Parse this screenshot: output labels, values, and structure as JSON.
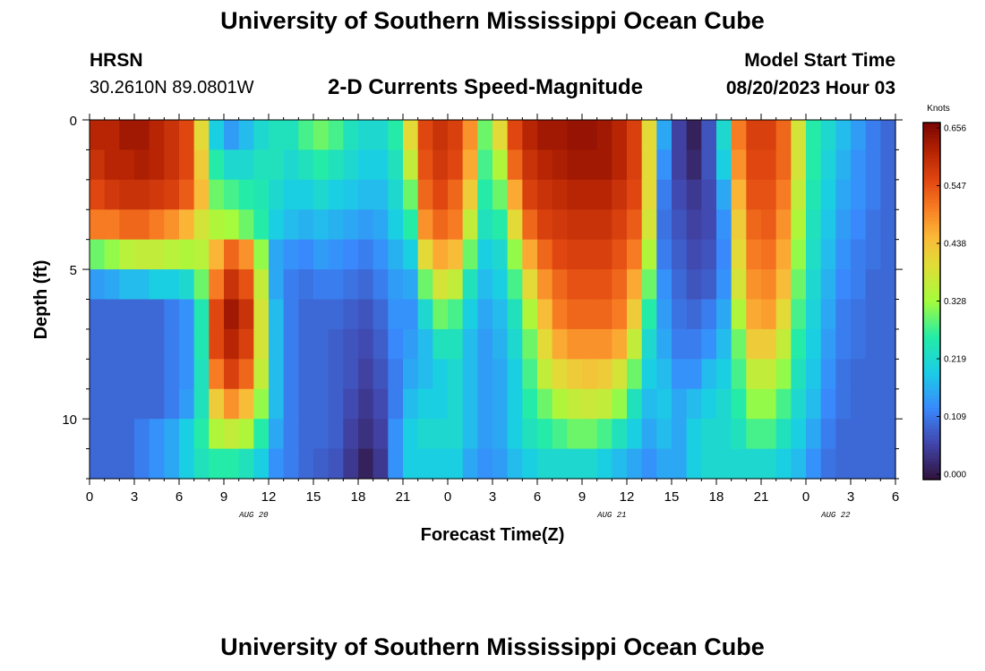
{
  "header": {
    "title": "University of Southern Mississippi Ocean Cube",
    "station": "HRSN",
    "coords": "30.2610N  89.0801W",
    "subtitle": "2-D Currents Speed-Magnitude",
    "model_label": "Model Start Time",
    "model_time": "08/20/2023 Hour 03"
  },
  "footer": {
    "title": "University of Southern Mississippi Ocean Cube"
  },
  "colors": {
    "frame": "#000000",
    "background": "#ffffff"
  },
  "chart_data": {
    "type": "heatmap",
    "title": "2-D Currents Speed-Magnitude",
    "xlabel": "Forecast Time(Z)",
    "ylabel": "Depth (ft)",
    "x_hours_from_start": [
      0,
      54
    ],
    "x_tick_labels": [
      "0",
      "3",
      "6",
      "9",
      "12",
      "15",
      "18",
      "21",
      "0",
      "3",
      "6",
      "9",
      "12",
      "15",
      "18",
      "21",
      "0",
      "3",
      "6"
    ],
    "date_labels": [
      {
        "hour": 11,
        "text": "AUG 20"
      },
      {
        "hour": 35,
        "text": "AUG 21"
      },
      {
        "hour": 50,
        "text": "AUG 22"
      }
    ],
    "y_range_ft": [
      0,
      12
    ],
    "y_major_ticks": [
      0,
      5,
      10
    ],
    "depth_levels_ft": [
      0.5,
      1.5,
      2.5,
      3.5,
      4.5,
      5.5,
      6.5,
      7.5,
      8.5,
      9.5,
      10.5,
      11.5
    ],
    "colorbar": {
      "unit": "Knots",
      "min": 0.0,
      "max": 0.656,
      "ticks": [
        "0.656",
        "0.547",
        "0.438",
        "0.328",
        "0.219",
        "0.109",
        "0.000"
      ]
    },
    "columns_hourly": [
      {
        "h": 0,
        "v": [
          0.6,
          0.58,
          0.55,
          0.5,
          0.3,
          0.15,
          0.1,
          0.1,
          0.1,
          0.1,
          0.1,
          0.1
        ]
      },
      {
        "h": 1,
        "v": [
          0.6,
          0.6,
          0.57,
          0.5,
          0.32,
          0.16,
          0.1,
          0.1,
          0.1,
          0.1,
          0.1,
          0.1
        ]
      },
      {
        "h": 2,
        "v": [
          0.62,
          0.6,
          0.58,
          0.52,
          0.35,
          0.18,
          0.1,
          0.1,
          0.1,
          0.1,
          0.1,
          0.1
        ]
      },
      {
        "h": 3,
        "v": [
          0.62,
          0.61,
          0.58,
          0.52,
          0.36,
          0.18,
          0.1,
          0.1,
          0.1,
          0.1,
          0.12,
          0.12
        ]
      },
      {
        "h": 4,
        "v": [
          0.6,
          0.6,
          0.57,
          0.5,
          0.36,
          0.2,
          0.1,
          0.1,
          0.1,
          0.1,
          0.14,
          0.14
        ]
      },
      {
        "h": 5,
        "v": [
          0.58,
          0.58,
          0.56,
          0.48,
          0.35,
          0.2,
          0.12,
          0.12,
          0.12,
          0.12,
          0.16,
          0.16
        ]
      },
      {
        "h": 6,
        "v": [
          0.55,
          0.55,
          0.53,
          0.45,
          0.34,
          0.22,
          0.14,
          0.14,
          0.14,
          0.15,
          0.2,
          0.2
        ]
      },
      {
        "h": 7,
        "v": [
          0.4,
          0.42,
          0.44,
          0.38,
          0.35,
          0.3,
          0.25,
          0.25,
          0.24,
          0.24,
          0.26,
          0.24
        ]
      },
      {
        "h": 8,
        "v": [
          0.2,
          0.26,
          0.3,
          0.34,
          0.45,
          0.5,
          0.55,
          0.55,
          0.5,
          0.42,
          0.34,
          0.26
        ]
      },
      {
        "h": 9,
        "v": [
          0.15,
          0.22,
          0.28,
          0.33,
          0.52,
          0.58,
          0.62,
          0.6,
          0.56,
          0.48,
          0.36,
          0.26
        ]
      },
      {
        "h": 10,
        "v": [
          0.18,
          0.22,
          0.26,
          0.3,
          0.48,
          0.54,
          0.58,
          0.56,
          0.52,
          0.44,
          0.34,
          0.24
        ]
      },
      {
        "h": 11,
        "v": [
          0.22,
          0.24,
          0.25,
          0.26,
          0.32,
          0.36,
          0.38,
          0.38,
          0.36,
          0.32,
          0.26,
          0.2
        ]
      },
      {
        "h": 12,
        "v": [
          0.24,
          0.24,
          0.22,
          0.2,
          0.16,
          0.16,
          0.18,
          0.18,
          0.18,
          0.18,
          0.16,
          0.14
        ]
      },
      {
        "h": 13,
        "v": [
          0.24,
          0.22,
          0.2,
          0.18,
          0.14,
          0.12,
          0.12,
          0.12,
          0.12,
          0.12,
          0.12,
          0.12
        ]
      },
      {
        "h": 14,
        "v": [
          0.28,
          0.24,
          0.2,
          0.17,
          0.13,
          0.11,
          0.1,
          0.1,
          0.1,
          0.1,
          0.1,
          0.1
        ]
      },
      {
        "h": 15,
        "v": [
          0.3,
          0.26,
          0.22,
          0.18,
          0.15,
          0.12,
          0.1,
          0.1,
          0.1,
          0.1,
          0.1,
          0.09
        ]
      },
      {
        "h": 16,
        "v": [
          0.28,
          0.24,
          0.2,
          0.17,
          0.14,
          0.12,
          0.1,
          0.09,
          0.09,
          0.09,
          0.09,
          0.08
        ]
      },
      {
        "h": 17,
        "v": [
          0.24,
          0.22,
          0.19,
          0.16,
          0.13,
          0.11,
          0.09,
          0.08,
          0.08,
          0.07,
          0.06,
          0.05
        ]
      },
      {
        "h": 18,
        "v": [
          0.22,
          0.2,
          0.18,
          0.15,
          0.12,
          0.1,
          0.08,
          0.07,
          0.06,
          0.05,
          0.04,
          0.02
        ]
      },
      {
        "h": 19,
        "v": [
          0.22,
          0.2,
          0.18,
          0.16,
          0.14,
          0.12,
          0.1,
          0.09,
          0.08,
          0.07,
          0.06,
          0.05
        ]
      },
      {
        "h": 20,
        "v": [
          0.26,
          0.24,
          0.22,
          0.2,
          0.17,
          0.15,
          0.14,
          0.13,
          0.12,
          0.12,
          0.14,
          0.14
        ]
      },
      {
        "h": 21,
        "v": [
          0.4,
          0.36,
          0.3,
          0.26,
          0.2,
          0.16,
          0.14,
          0.15,
          0.16,
          0.18,
          0.2,
          0.2
        ]
      },
      {
        "h": 22,
        "v": [
          0.55,
          0.54,
          0.52,
          0.48,
          0.4,
          0.3,
          0.22,
          0.18,
          0.18,
          0.2,
          0.22,
          0.2
        ]
      },
      {
        "h": 23,
        "v": [
          0.58,
          0.57,
          0.55,
          0.52,
          0.46,
          0.38,
          0.3,
          0.24,
          0.2,
          0.2,
          0.22,
          0.2
        ]
      },
      {
        "h": 24,
        "v": [
          0.56,
          0.55,
          0.52,
          0.5,
          0.44,
          0.36,
          0.28,
          0.24,
          0.22,
          0.22,
          0.22,
          0.2
        ]
      },
      {
        "h": 25,
        "v": [
          0.48,
          0.46,
          0.42,
          0.36,
          0.3,
          0.24,
          0.2,
          0.18,
          0.18,
          0.18,
          0.18,
          0.16
        ]
      },
      {
        "h": 26,
        "v": [
          0.3,
          0.28,
          0.26,
          0.24,
          0.2,
          0.18,
          0.16,
          0.15,
          0.15,
          0.15,
          0.15,
          0.14
        ]
      },
      {
        "h": 27,
        "v": [
          0.4,
          0.34,
          0.3,
          0.26,
          0.22,
          0.2,
          0.18,
          0.17,
          0.16,
          0.16,
          0.16,
          0.15
        ]
      },
      {
        "h": 28,
        "v": [
          0.55,
          0.52,
          0.46,
          0.4,
          0.32,
          0.28,
          0.24,
          0.22,
          0.2,
          0.2,
          0.2,
          0.18
        ]
      },
      {
        "h": 29,
        "v": [
          0.6,
          0.58,
          0.56,
          0.52,
          0.46,
          0.4,
          0.34,
          0.3,
          0.28,
          0.26,
          0.24,
          0.2
        ]
      },
      {
        "h": 30,
        "v": [
          0.62,
          0.6,
          0.58,
          0.56,
          0.52,
          0.48,
          0.44,
          0.4,
          0.36,
          0.3,
          0.26,
          0.22
        ]
      },
      {
        "h": 31,
        "v": [
          0.62,
          0.61,
          0.59,
          0.57,
          0.55,
          0.52,
          0.5,
          0.46,
          0.4,
          0.34,
          0.28,
          0.22
        ]
      },
      {
        "h": 32,
        "v": [
          0.63,
          0.62,
          0.6,
          0.58,
          0.56,
          0.54,
          0.52,
          0.48,
          0.42,
          0.36,
          0.3,
          0.22
        ]
      },
      {
        "h": 33,
        "v": [
          0.63,
          0.62,
          0.6,
          0.58,
          0.56,
          0.54,
          0.52,
          0.48,
          0.43,
          0.37,
          0.3,
          0.22
        ]
      },
      {
        "h": 34,
        "v": [
          0.62,
          0.62,
          0.6,
          0.58,
          0.56,
          0.54,
          0.52,
          0.48,
          0.42,
          0.36,
          0.28,
          0.2
        ]
      },
      {
        "h": 35,
        "v": [
          0.6,
          0.6,
          0.58,
          0.56,
          0.54,
          0.52,
          0.5,
          0.46,
          0.38,
          0.32,
          0.24,
          0.18
        ]
      },
      {
        "h": 36,
        "v": [
          0.56,
          0.56,
          0.55,
          0.53,
          0.5,
          0.46,
          0.42,
          0.36,
          0.3,
          0.24,
          0.2,
          0.16
        ]
      },
      {
        "h": 37,
        "v": [
          0.4,
          0.4,
          0.4,
          0.38,
          0.34,
          0.3,
          0.26,
          0.22,
          0.2,
          0.18,
          0.16,
          0.14
        ]
      },
      {
        "h": 38,
        "v": [
          0.16,
          0.14,
          0.12,
          0.11,
          0.12,
          0.14,
          0.15,
          0.16,
          0.18,
          0.19,
          0.18,
          0.16
        ]
      },
      {
        "h": 39,
        "v": [
          0.06,
          0.06,
          0.07,
          0.08,
          0.09,
          0.1,
          0.11,
          0.12,
          0.14,
          0.16,
          0.16,
          0.16
        ]
      },
      {
        "h": 40,
        "v": [
          0.02,
          0.03,
          0.05,
          0.06,
          0.07,
          0.08,
          0.1,
          0.12,
          0.14,
          0.18,
          0.2,
          0.2
        ]
      },
      {
        "h": 41,
        "v": [
          0.08,
          0.08,
          0.07,
          0.07,
          0.08,
          0.09,
          0.12,
          0.14,
          0.18,
          0.2,
          0.22,
          0.22
        ]
      },
      {
        "h": 42,
        "v": [
          0.22,
          0.2,
          0.16,
          0.14,
          0.13,
          0.14,
          0.16,
          0.18,
          0.2,
          0.22,
          0.22,
          0.22
        ]
      },
      {
        "h": 43,
        "v": [
          0.5,
          0.48,
          0.45,
          0.42,
          0.4,
          0.38,
          0.34,
          0.3,
          0.28,
          0.26,
          0.24,
          0.22
        ]
      },
      {
        "h": 44,
        "v": [
          0.56,
          0.55,
          0.54,
          0.52,
          0.5,
          0.48,
          0.46,
          0.42,
          0.36,
          0.32,
          0.28,
          0.22
        ]
      },
      {
        "h": 45,
        "v": [
          0.56,
          0.55,
          0.54,
          0.53,
          0.51,
          0.49,
          0.47,
          0.42,
          0.36,
          0.32,
          0.28,
          0.22
        ]
      },
      {
        "h": 46,
        "v": [
          0.52,
          0.52,
          0.5,
          0.48,
          0.46,
          0.44,
          0.4,
          0.36,
          0.32,
          0.28,
          0.24,
          0.2
        ]
      },
      {
        "h": 47,
        "v": [
          0.38,
          0.38,
          0.36,
          0.34,
          0.32,
          0.3,
          0.28,
          0.26,
          0.24,
          0.22,
          0.2,
          0.18
        ]
      },
      {
        "h": 48,
        "v": [
          0.26,
          0.26,
          0.25,
          0.24,
          0.23,
          0.22,
          0.21,
          0.2,
          0.19,
          0.18,
          0.16,
          0.14
        ]
      },
      {
        "h": 49,
        "v": [
          0.22,
          0.21,
          0.2,
          0.19,
          0.18,
          0.17,
          0.16,
          0.15,
          0.14,
          0.13,
          0.12,
          0.11
        ]
      },
      {
        "h": 50,
        "v": [
          0.18,
          0.17,
          0.16,
          0.15,
          0.14,
          0.13,
          0.12,
          0.12,
          0.11,
          0.11,
          0.1,
          0.1
        ]
      },
      {
        "h": 51,
        "v": [
          0.15,
          0.14,
          0.14,
          0.13,
          0.12,
          0.12,
          0.11,
          0.11,
          0.1,
          0.1,
          0.1,
          0.1
        ]
      },
      {
        "h": 52,
        "v": [
          0.12,
          0.12,
          0.12,
          0.11,
          0.11,
          0.1,
          0.1,
          0.1,
          0.1,
          0.1,
          0.1,
          0.1
        ]
      },
      {
        "h": 53,
        "v": [
          0.1,
          0.1,
          0.1,
          0.1,
          0.1,
          0.1,
          0.1,
          0.1,
          0.1,
          0.1,
          0.1,
          0.1
        ]
      }
    ]
  }
}
